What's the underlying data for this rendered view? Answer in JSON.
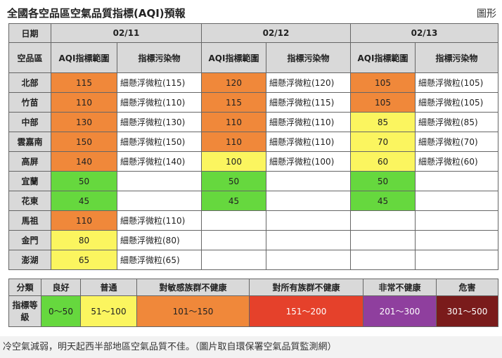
{
  "header": {
    "title": "全國各空品區空氣品質指標(AQI)預報",
    "link": "圖形"
  },
  "table": {
    "date_label": "日期",
    "region_label": "空品區",
    "dates": [
      "02/11",
      "02/12",
      "02/13"
    ],
    "sub_headers": [
      "AQI指標範圍",
      "指標污染物"
    ],
    "rows": [
      {
        "region": "北部",
        "days": [
          {
            "aqi": 115,
            "color": "#f0883a",
            "pollutant": "細懸浮微粒(115)"
          },
          {
            "aqi": 120,
            "color": "#f0883a",
            "pollutant": "細懸浮微粒(120)"
          },
          {
            "aqi": 105,
            "color": "#f0883a",
            "pollutant": "細懸浮微粒(105)"
          }
        ]
      },
      {
        "region": "竹苗",
        "days": [
          {
            "aqi": 110,
            "color": "#f0883a",
            "pollutant": "細懸浮微粒(110)"
          },
          {
            "aqi": 115,
            "color": "#f0883a",
            "pollutant": "細懸浮微粒(115)"
          },
          {
            "aqi": 105,
            "color": "#f0883a",
            "pollutant": "細懸浮微粒(105)"
          }
        ]
      },
      {
        "region": "中部",
        "days": [
          {
            "aqi": 130,
            "color": "#f0883a",
            "pollutant": "細懸浮微粒(130)"
          },
          {
            "aqi": 110,
            "color": "#f0883a",
            "pollutant": "細懸浮微粒(110)"
          },
          {
            "aqi": 85,
            "color": "#fbf55f",
            "pollutant": "細懸浮微粒(85)"
          }
        ]
      },
      {
        "region": "雲嘉南",
        "days": [
          {
            "aqi": 150,
            "color": "#f0883a",
            "pollutant": "細懸浮微粒(150)"
          },
          {
            "aqi": 110,
            "color": "#f0883a",
            "pollutant": "細懸浮微粒(110)"
          },
          {
            "aqi": 70,
            "color": "#fbf55f",
            "pollutant": "細懸浮微粒(70)"
          }
        ]
      },
      {
        "region": "高屏",
        "days": [
          {
            "aqi": 140,
            "color": "#f0883a",
            "pollutant": "細懸浮微粒(140)"
          },
          {
            "aqi": 100,
            "color": "#fbf55f",
            "pollutant": "細懸浮微粒(100)"
          },
          {
            "aqi": 60,
            "color": "#fbf55f",
            "pollutant": "細懸浮微粒(60)"
          }
        ]
      },
      {
        "region": "宜蘭",
        "days": [
          {
            "aqi": 50,
            "color": "#66d83e",
            "pollutant": null
          },
          {
            "aqi": 50,
            "color": "#66d83e",
            "pollutant": null
          },
          {
            "aqi": 50,
            "color": "#66d83e",
            "pollutant": null
          }
        ]
      },
      {
        "region": "花東",
        "days": [
          {
            "aqi": 45,
            "color": "#66d83e",
            "pollutant": null
          },
          {
            "aqi": 45,
            "color": "#66d83e",
            "pollutant": null
          },
          {
            "aqi": 45,
            "color": "#66d83e",
            "pollutant": null
          }
        ]
      },
      {
        "region": "馬祖",
        "days": [
          {
            "aqi": 110,
            "color": "#f0883a",
            "pollutant": "細懸浮微粒(110)"
          },
          null,
          null
        ]
      },
      {
        "region": "金門",
        "days": [
          {
            "aqi": 80,
            "color": "#fbf55f",
            "pollutant": "細懸浮微粒(80)"
          },
          null,
          null
        ]
      },
      {
        "region": "澎湖",
        "days": [
          {
            "aqi": 65,
            "color": "#fbf55f",
            "pollutant": "細懸浮微粒(65)"
          },
          null,
          null
        ]
      }
    ]
  },
  "legend": {
    "category_label": "分類",
    "level_label": "指標等級",
    "levels": [
      {
        "name": "良好",
        "range": "0～50",
        "color": "#66d83e"
      },
      {
        "name": "普通",
        "range": "51～100",
        "color": "#fbf55f"
      },
      {
        "name": "對敏感族群不健康",
        "range": "101～150",
        "color": "#f0883a"
      },
      {
        "name": "對所有族群不健康",
        "range": "151～200",
        "color": "#e5412b"
      },
      {
        "name": "非常不健康",
        "range": "201～300",
        "color": "#8f3f9e"
      },
      {
        "name": "危害",
        "range": "301～500",
        "color": "#7a1b1b"
      }
    ]
  },
  "caption": "冷空氣減弱，明天起西半部地區空氣品質不佳。（圖片取自環保署空氣品質監測網）"
}
